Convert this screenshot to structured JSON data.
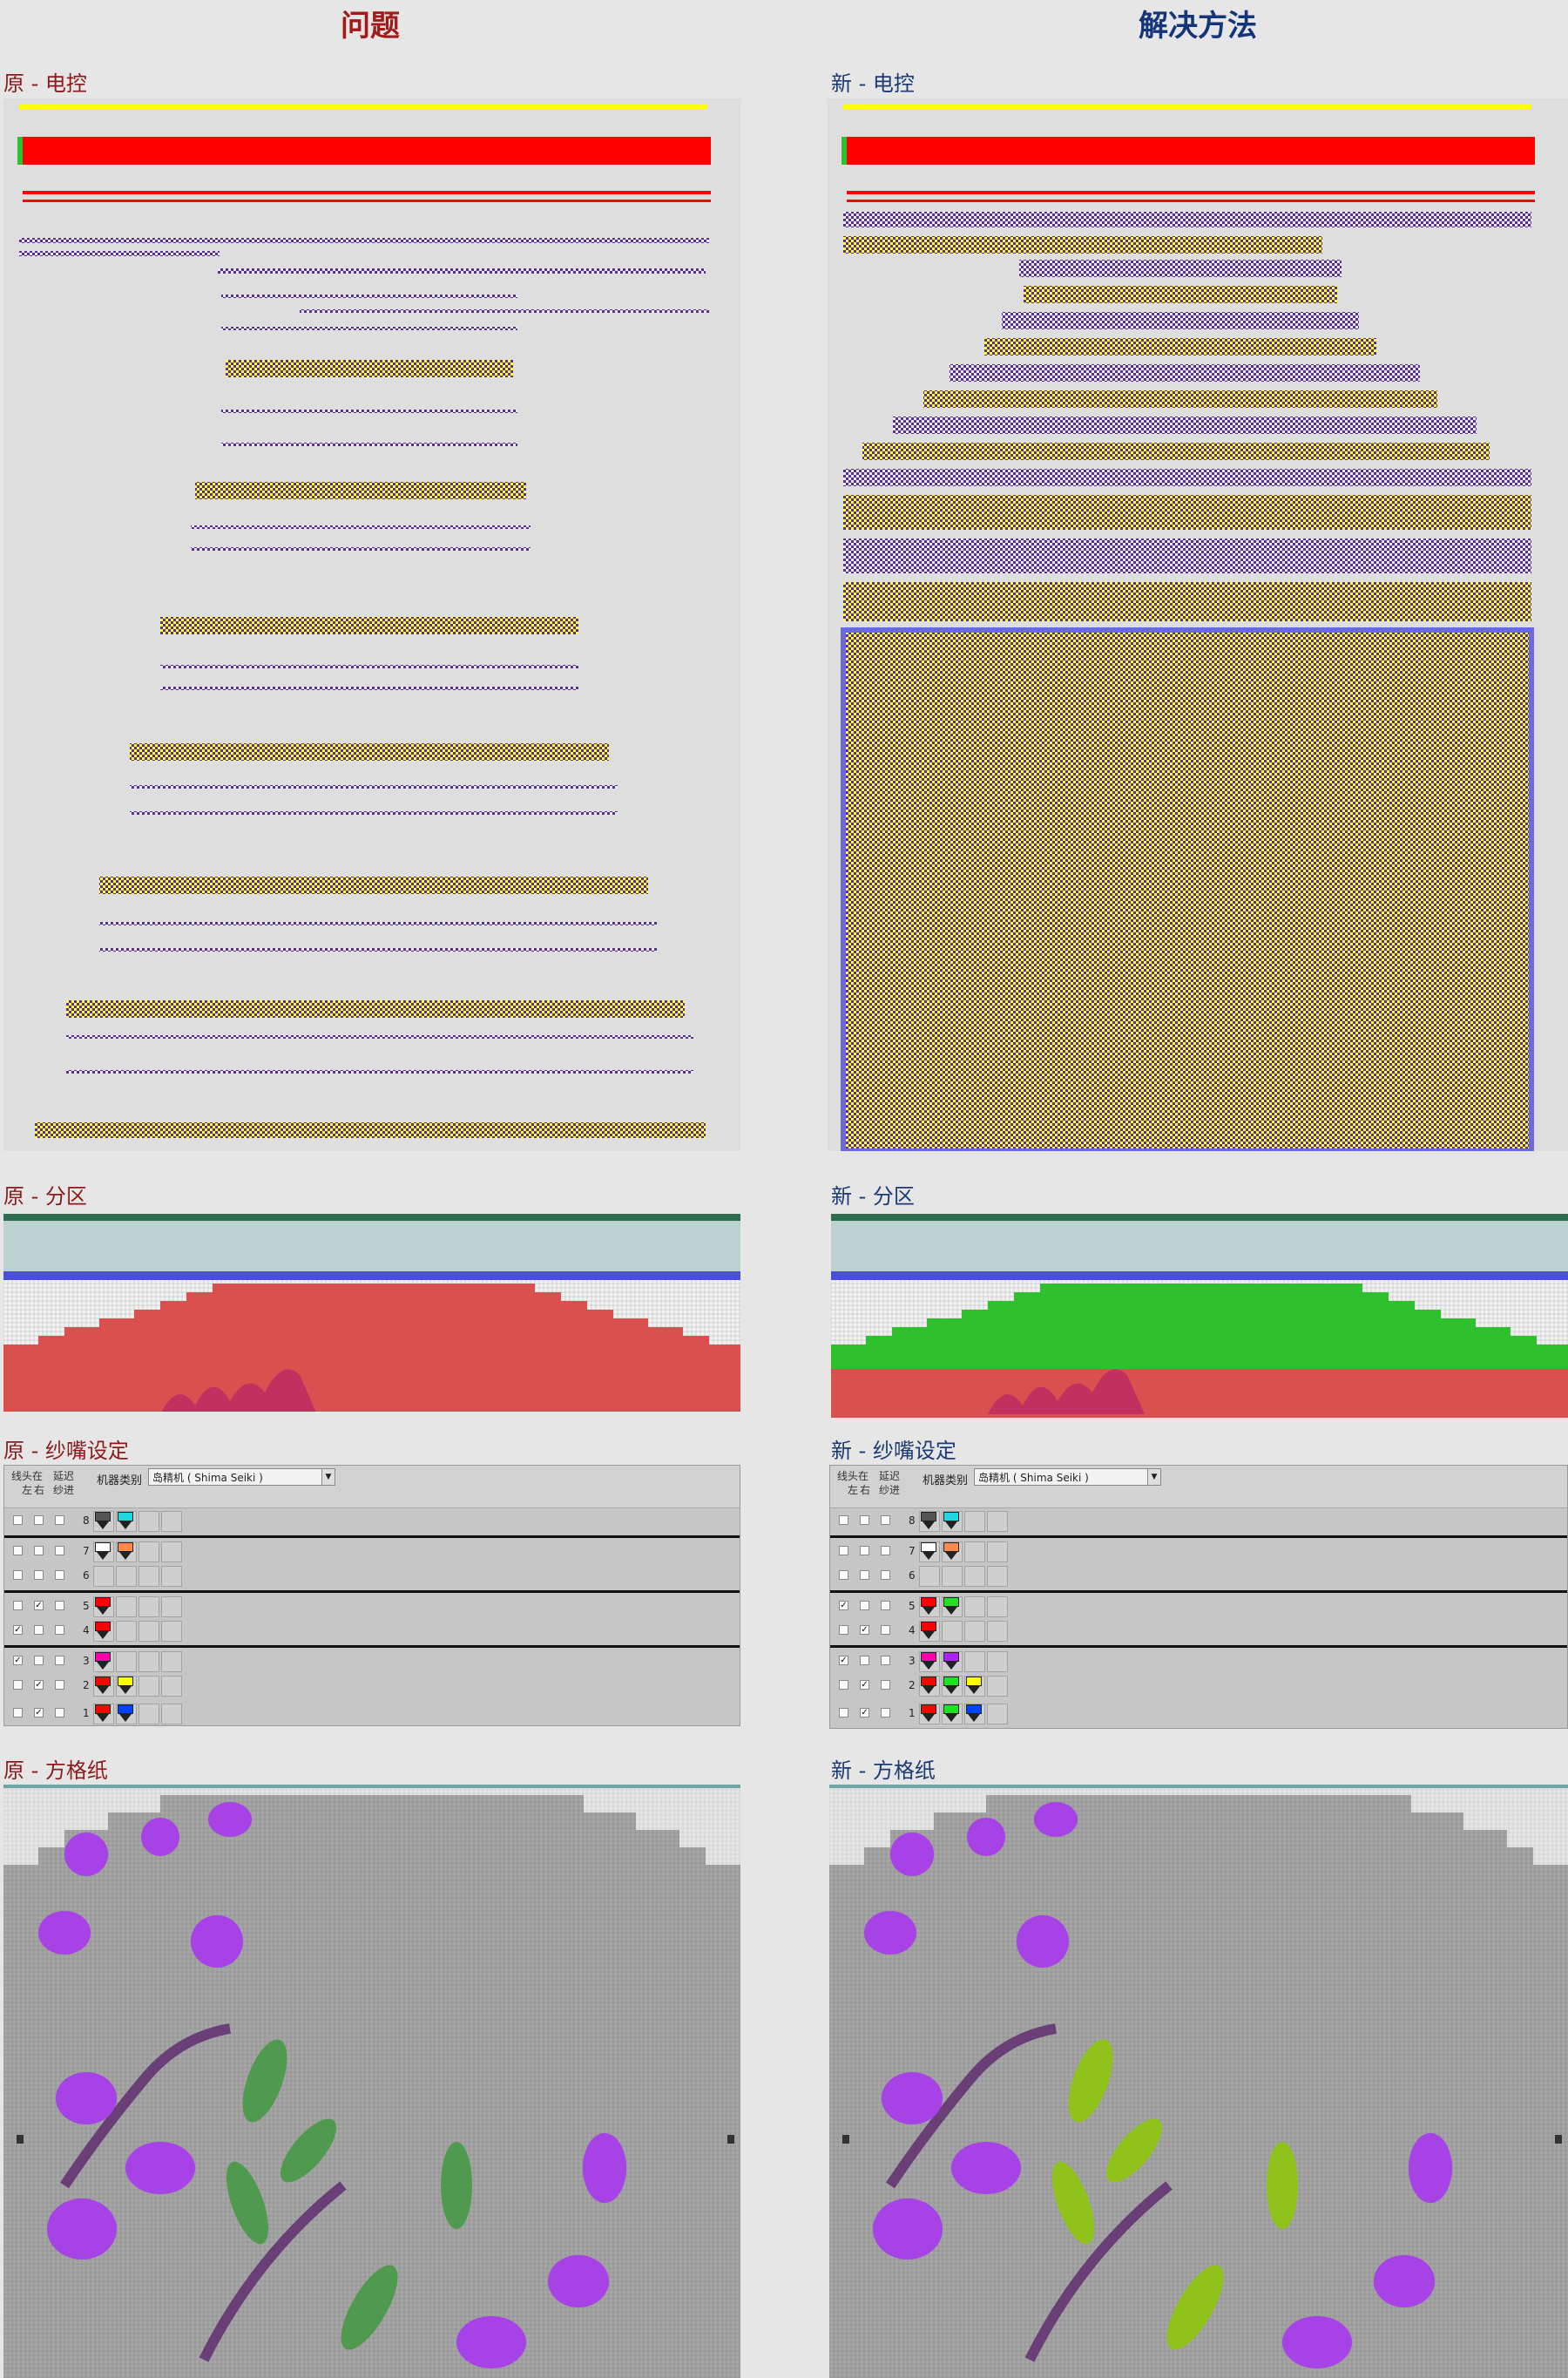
{
  "headers": {
    "problem": "问题",
    "solution": "解决方法"
  },
  "sections": {
    "orig_control": "原 - 电控",
    "new_control": "新 - 电控",
    "orig_zone": "原 - 分区",
    "new_zone": "新 - 分区",
    "orig_yarn": "原 - 纱嘴设定",
    "new_yarn": "新 - 纱嘴设定",
    "orig_grid": "原 - 方格纸",
    "new_grid": "新 - 方格纸"
  },
  "yarn_settings": {
    "col_left": "线头在\n左",
    "col_right": "右",
    "col_extend": "延迟\n纱进",
    "machine_label": "机器类别",
    "machine_value": "岛精机 ( Shima Seiki )",
    "orig_rows": [
      {
        "num": "8",
        "left": false,
        "right": false,
        "ext": false,
        "colors": [
          "#555555",
          "#22d6e0"
        ],
        "sep": false
      },
      {
        "num": "7",
        "left": false,
        "right": false,
        "ext": false,
        "colors": [
          "#ffffff",
          "#ff8a4a"
        ],
        "sep": true
      },
      {
        "num": "6",
        "left": false,
        "right": false,
        "ext": false,
        "colors": [],
        "sep": false
      },
      {
        "num": "5",
        "left": false,
        "right": true,
        "ext": false,
        "colors": [
          "#ff0000"
        ],
        "sep": true
      },
      {
        "num": "4",
        "left": true,
        "right": false,
        "ext": false,
        "colors": [
          "#ff0000"
        ],
        "sep": false
      },
      {
        "num": "3",
        "left": true,
        "right": false,
        "ext": false,
        "colors": [
          "#ff00aa"
        ],
        "sep": true
      },
      {
        "num": "2",
        "left": false,
        "right": true,
        "ext": false,
        "colors": [
          "#ff0000",
          "#ffff00"
        ],
        "sep": false
      },
      {
        "num": "1",
        "left": false,
        "right": true,
        "ext": false,
        "colors": [
          "#ff0000",
          "#0044ff"
        ],
        "sep": false
      }
    ],
    "new_rows": [
      {
        "num": "8",
        "left": false,
        "right": false,
        "ext": false,
        "colors": [
          "#555555",
          "#22d6e0"
        ],
        "sep": false
      },
      {
        "num": "7",
        "left": false,
        "right": false,
        "ext": false,
        "colors": [
          "#ffffff",
          "#ff8a4a"
        ],
        "sep": true
      },
      {
        "num": "6",
        "left": false,
        "right": false,
        "ext": false,
        "colors": [],
        "sep": false
      },
      {
        "num": "5",
        "left": true,
        "right": false,
        "ext": false,
        "colors": [
          "#ff0000",
          "#22e022"
        ],
        "sep": true
      },
      {
        "num": "4",
        "left": false,
        "right": true,
        "ext": false,
        "colors": [
          "#ff0000"
        ],
        "sep": false
      },
      {
        "num": "3",
        "left": true,
        "right": false,
        "ext": false,
        "colors": [
          "#ff00aa",
          "#aa22ff"
        ],
        "sep": true
      },
      {
        "num": "2",
        "left": false,
        "right": true,
        "ext": false,
        "colors": [
          "#ff0000",
          "#22e022",
          "#ffff00"
        ],
        "sep": false
      },
      {
        "num": "1",
        "left": false,
        "right": true,
        "ext": false,
        "colors": [
          "#ff0000",
          "#22e022",
          "#0044ff"
        ],
        "sep": false
      }
    ]
  },
  "colors": {
    "problem_red": "#a21a1a",
    "solution_blue": "#15357a",
    "knit_purple": "#5a2f8f",
    "knit_yellow": "#ffff33",
    "bar_red": "#ff0000",
    "zone_red": "#d9504f",
    "zone_green": "#2fbf2f",
    "zone_blue": "#4a4fd8",
    "grid_gray": "#a6a6a6",
    "flower_purple": "#a642e6",
    "leaf_green_orig": "#4f9a4f",
    "leaf_green_new": "#8fc21a"
  }
}
